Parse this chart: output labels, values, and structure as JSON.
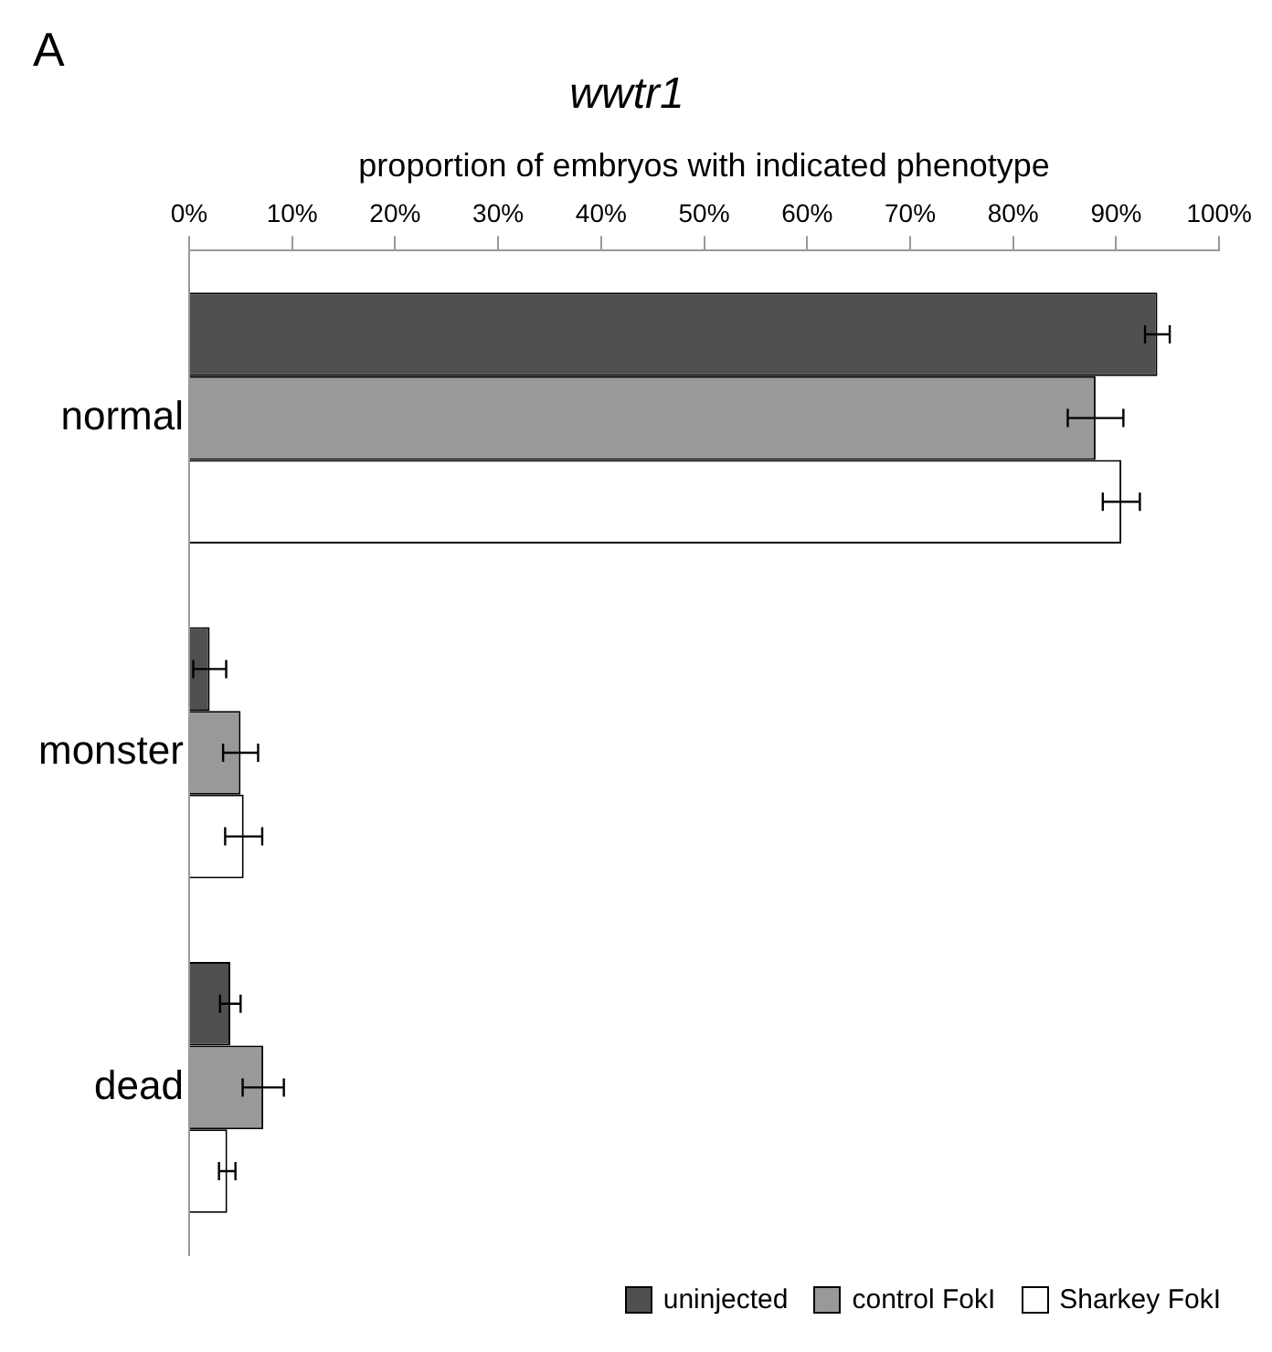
{
  "chart_data": {
    "type": "bar",
    "orientation": "horizontal",
    "title": "wwtr1",
    "xlabel": "proportion of embryos with indicated phenotype",
    "annotations": [
      "A"
    ],
    "categories": [
      "normal",
      "monster",
      "dead"
    ],
    "series": [
      {
        "name": "uninjected",
        "color": "#505050",
        "values": [
          94,
          2,
          4
        ],
        "errors": [
          1.2,
          1.6,
          1
        ]
      },
      {
        "name": "control FokI",
        "color": "#999999",
        "values": [
          88,
          5,
          7.2
        ],
        "errors": [
          2.7,
          1.7,
          2
        ]
      },
      {
        "name": "Sharkey FokI",
        "color": "#ffffff",
        "values": [
          90.5,
          5.3,
          3.7
        ],
        "errors": [
          1.8,
          1.8,
          0.8
        ]
      }
    ],
    "xlim": [
      0,
      100
    ],
    "xticks": [
      {
        "value": 0,
        "label": "0%"
      },
      {
        "value": 10,
        "label": "10%"
      },
      {
        "value": 20,
        "label": "20%"
      },
      {
        "value": 30,
        "label": "30%"
      },
      {
        "value": 40,
        "label": "40%"
      },
      {
        "value": 50,
        "label": "50%"
      },
      {
        "value": 60,
        "label": "60%"
      },
      {
        "value": 70,
        "label": "70%"
      },
      {
        "value": 80,
        "label": "80%"
      },
      {
        "value": 90,
        "label": "90%"
      },
      {
        "value": 100,
        "label": "100%"
      }
    ],
    "grid": false,
    "legend": "bottom right"
  }
}
